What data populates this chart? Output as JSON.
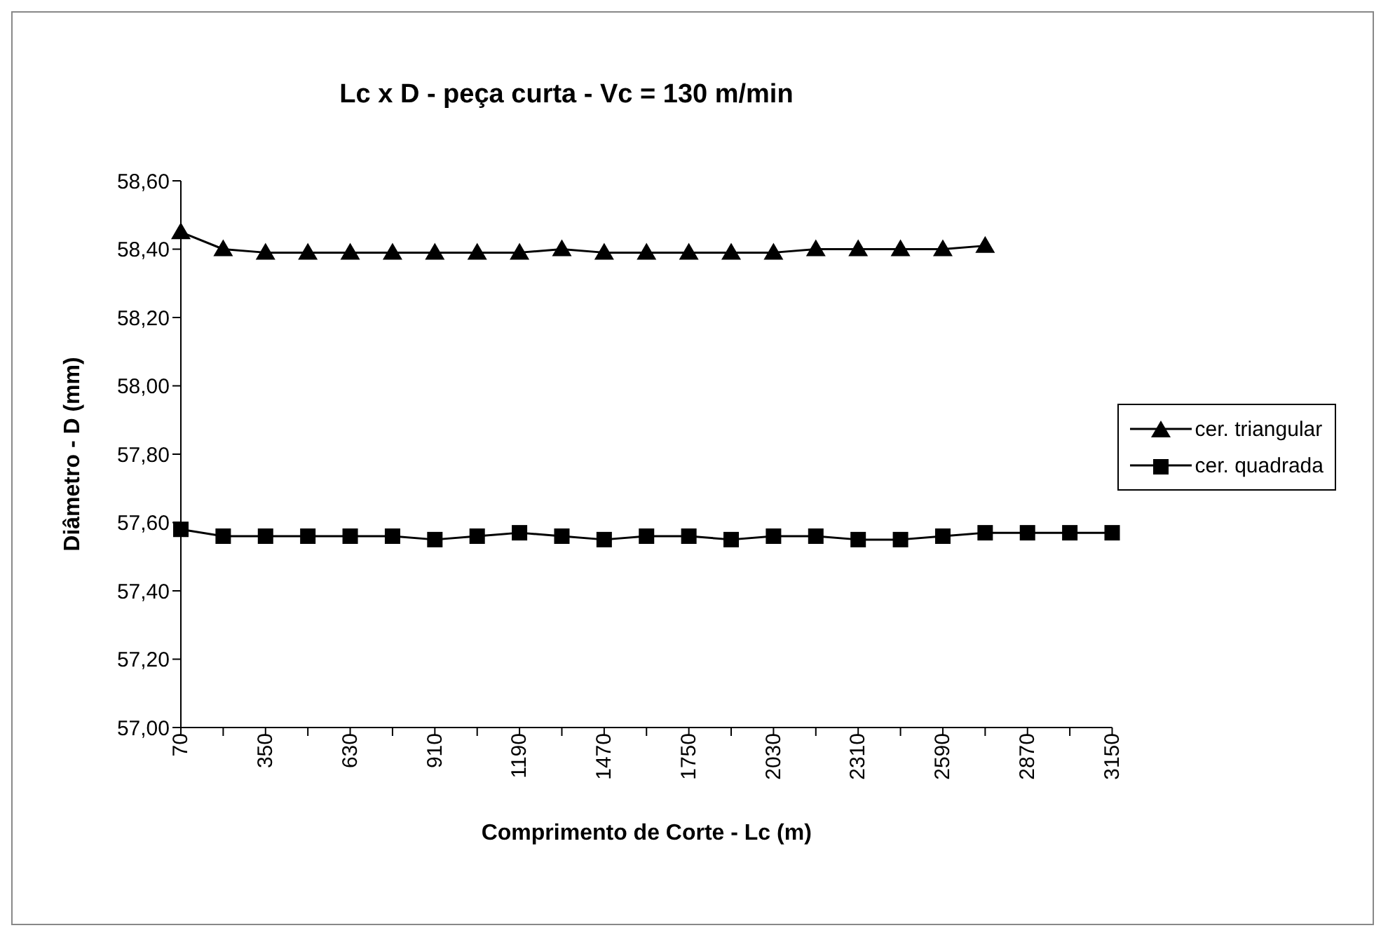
{
  "chart_data": {
    "type": "line",
    "title": "Lc x D - peça curta - Vc = 130 m/min",
    "xlabel": "Comprimento de Corte - Lc (m)",
    "ylabel": "Diâmetro - D (mm)",
    "categories": [
      "70",
      null,
      "350",
      null,
      "630",
      null,
      "910",
      null,
      "1190",
      null,
      "1470",
      null,
      "1750",
      null,
      "2030",
      null,
      "2310",
      null,
      "2590",
      null,
      "2870",
      null,
      "3150"
    ],
    "series": [
      {
        "name": "cer. triangular",
        "color": "#000000",
        "marker": "triangle",
        "values": [
          58.45,
          58.4,
          58.39,
          58.39,
          58.39,
          58.39,
          58.39,
          58.39,
          58.39,
          58.4,
          58.39,
          58.39,
          58.39,
          58.39,
          58.39,
          58.4,
          58.4,
          58.4,
          58.4,
          58.41,
          null,
          null,
          null
        ]
      },
      {
        "name": "cer. quadrada",
        "color": "#000000",
        "marker": "square",
        "values": [
          57.58,
          57.56,
          57.56,
          57.56,
          57.56,
          57.56,
          57.55,
          57.56,
          57.57,
          57.56,
          57.55,
          57.56,
          57.56,
          57.55,
          57.56,
          57.56,
          57.55,
          57.55,
          57.56,
          57.57,
          57.57,
          57.57,
          57.57
        ]
      }
    ],
    "ylim": [
      57.0,
      58.6
    ],
    "yticks": [
      {
        "value": 57.0,
        "label": "57,00"
      },
      {
        "value": 57.2,
        "label": "57,20"
      },
      {
        "value": 57.4,
        "label": "57,40"
      },
      {
        "value": 57.6,
        "label": "57,60"
      },
      {
        "value": 57.8,
        "label": "57,80"
      },
      {
        "value": 58.0,
        "label": "58,00"
      },
      {
        "value": 58.2,
        "label": "58,20"
      },
      {
        "value": 58.4,
        "label": "58,40"
      },
      {
        "value": 58.6,
        "label": "58,60"
      }
    ],
    "grid": false,
    "legend": "right",
    "line_style": "solid"
  }
}
